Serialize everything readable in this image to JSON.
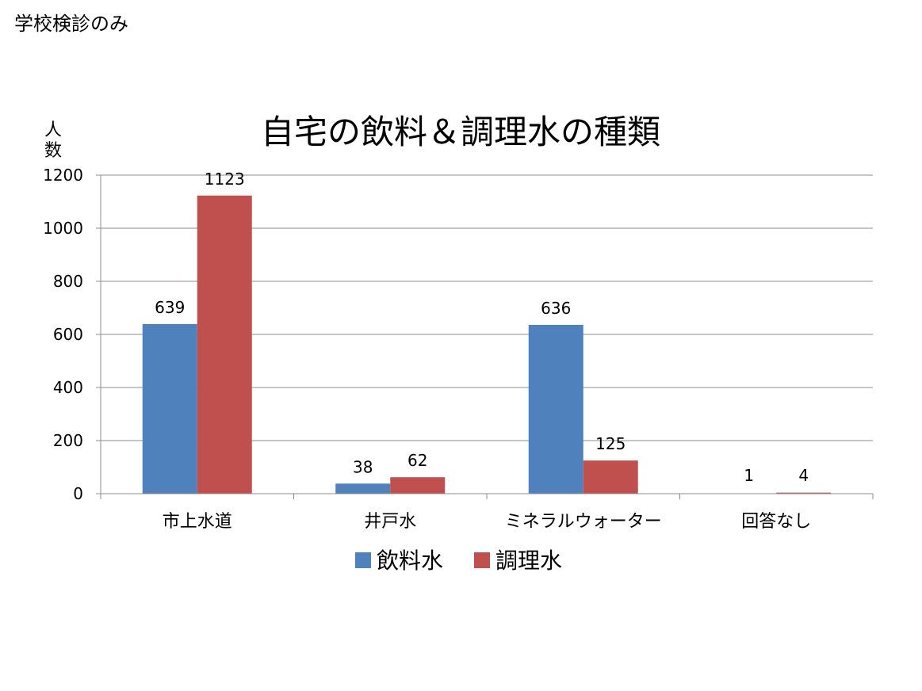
{
  "page_label": "学校検診のみ",
  "chart_data": {
    "type": "bar",
    "title": "自宅の飲料＆調理水の種類",
    "ylabel": "人数",
    "xlabel": "",
    "categories": [
      "市上水道",
      "井戸水",
      "ミネラルウォーター",
      "回答なし"
    ],
    "series": [
      {
        "name": "飲料水",
        "color": "#4F81BD",
        "values": [
          639,
          38,
          636,
          1
        ]
      },
      {
        "name": "調理水",
        "color": "#C0504D",
        "values": [
          1123,
          62,
          125,
          4
        ]
      }
    ],
    "ylim": [
      0,
      1200
    ],
    "yticks": [
      0,
      200,
      400,
      600,
      800,
      1000,
      1200
    ],
    "grid": true,
    "legend": "bottom"
  }
}
